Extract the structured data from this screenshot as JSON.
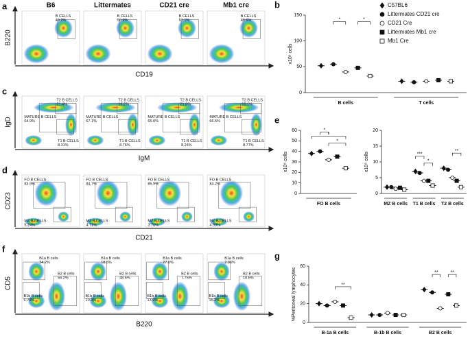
{
  "flow_panels": [
    {
      "label": "a",
      "columns": [
        "B6",
        "Littermates",
        "CD21 cre",
        "Mb1 cre"
      ],
      "y_axis": "B220",
      "x_axis": "CD19",
      "plots": [
        {
          "gates": [
            {
              "name": "B CELLS",
              "value": "49.2%"
            }
          ]
        },
        {
          "gates": [
            {
              "name": "B CELLS",
              "value": "50.9%"
            }
          ]
        },
        {
          "gates": [
            {
              "name": "B CELLS",
              "value": "51.1%"
            }
          ]
        },
        {
          "gates": [
            {
              "name": "B CELLS",
              "value": "43.6%"
            }
          ]
        }
      ]
    },
    {
      "label": "c",
      "y_axis": "IgD",
      "x_axis": "IgM",
      "plots": [
        {
          "gates": [
            {
              "name": "T2 B CELLS",
              "value": "21.4%"
            },
            {
              "name": "MATURE B CELLS",
              "value": "64.9%"
            },
            {
              "name": "T1 B CELLS",
              "value": "8.31%"
            }
          ]
        },
        {
          "gates": [
            {
              "name": "T2 B CELLS",
              "value": "16.2%"
            },
            {
              "name": "MATURE B CELLS",
              "value": "67.1%"
            },
            {
              "name": "T1 B CELLS",
              "value": "8.76%"
            }
          ]
        },
        {
          "gates": [
            {
              "name": "T2 B CELLS",
              "value": "21.8%"
            },
            {
              "name": "MATURE B CELLS",
              "value": "65.0%"
            },
            {
              "name": "T1 B CELLS",
              "value": "8.24%"
            }
          ]
        },
        {
          "gates": [
            {
              "name": "T2 B CELLS",
              "value": "15.1%"
            },
            {
              "name": "MATURE B CELLS",
              "value": "66.5%"
            },
            {
              "name": "T1 B CELLS",
              "value": "8.77%"
            }
          ]
        }
      ]
    },
    {
      "label": "d",
      "y_axis": "CD23",
      "x_axis": "CD21",
      "plots": [
        {
          "gates": [
            {
              "name": "FO B CELLS",
              "value": "83.9%"
            },
            {
              "name": "MZ B CELLS",
              "value": "5.24%"
            }
          ]
        },
        {
          "gates": [
            {
              "name": "FO B CELLS",
              "value": "84.7%"
            },
            {
              "name": "MZ B CELLS",
              "value": "4.71%"
            }
          ]
        },
        {
          "gates": [
            {
              "name": "FO B CELLS",
              "value": "86.9%"
            },
            {
              "name": "MZ B CELLS",
              "value": "3.70%"
            }
          ]
        },
        {
          "gates": [
            {
              "name": "FO B CELLS",
              "value": "84.2%"
            },
            {
              "name": "MZ B CELLS",
              "value": "4.99%"
            }
          ]
        }
      ]
    },
    {
      "label": "f",
      "y_axis": "CD5",
      "x_axis": "B220",
      "plots": [
        {
          "gates": [
            {
              "name": "B1a B cells",
              "value": "24.2%"
            },
            {
              "name": "B2 B cells",
              "value": "56.2%"
            },
            {
              "name": "B1b B cells",
              "value": "6.70%"
            }
          ]
        },
        {
          "gates": [
            {
              "name": "B1a B cells",
              "value": "18.5%"
            },
            {
              "name": "B2 B cells",
              "value": "48.5%"
            },
            {
              "name": "B1b B cells",
              "value": "10.3%"
            }
          ]
        },
        {
          "gates": [
            {
              "name": "B1a B cells",
              "value": "27.0%"
            },
            {
              "name": "B2 B cells",
              "value": "7.75%"
            },
            {
              "name": "B1b B cells",
              "value": "13.9%"
            }
          ]
        },
        {
          "gates": [
            {
              "name": "B1a B cells",
              "value": "2.06%"
            },
            {
              "name": "B2 B cells",
              "value": "10.6%"
            },
            {
              "name": "B1b B cells",
              "value": "15.2%"
            }
          ]
        }
      ]
    }
  ],
  "legend": [
    {
      "name": "C57BL6",
      "marker": "diamond",
      "filled": true
    },
    {
      "name": "Littermates CD21 cre",
      "marker": "circle",
      "filled": true
    },
    {
      "name": "CD21 Cre",
      "marker": "circle",
      "filled": false
    },
    {
      "name": "Littermates Mb1 cre",
      "marker": "square",
      "filled": true
    },
    {
      "name": "Mb1 Cre",
      "marker": "square",
      "filled": false
    }
  ],
  "chart_data": [
    {
      "type": "dot",
      "label": "b",
      "ylabel": "x10⁶ cells",
      "ylim": [
        0,
        150
      ],
      "yticks": [
        0,
        50,
        100,
        150
      ],
      "categories": [
        "B cells",
        "T cells"
      ],
      "series": [
        {
          "values": [
            52,
            22
          ]
        },
        {
          "values": [
            55,
            20
          ]
        },
        {
          "values": [
            40,
            22
          ]
        },
        {
          "values": [
            48,
            24
          ]
        },
        {
          "values": [
            32,
            22
          ]
        }
      ],
      "annotations": [
        "*",
        "*"
      ]
    },
    {
      "type": "dot",
      "label": "e",
      "ylabel": "x10⁶ cells",
      "ylim": [
        0,
        60
      ],
      "yticks": [
        0,
        10,
        20,
        30,
        40,
        50,
        60
      ],
      "categories": [
        "FO B cells"
      ],
      "series": [
        {
          "values": [
            38
          ]
        },
        {
          "values": [
            40
          ]
        },
        {
          "values": [
            32
          ]
        },
        {
          "values": [
            35
          ]
        },
        {
          "values": [
            24
          ]
        }
      ],
      "annotations": [
        "*",
        "*",
        "*"
      ]
    },
    {
      "type": "dot",
      "ylabel": "x10⁶ cells",
      "ylim": [
        0,
        20
      ],
      "yticks": [
        0,
        5,
        10,
        15,
        20
      ],
      "categories": [
        "MZ B cells",
        "T1 B cells",
        "T2 B cells"
      ],
      "series": [
        {
          "values": [
            2,
            7,
            8
          ]
        },
        {
          "values": [
            2,
            6.5,
            7.5
          ]
        },
        {
          "values": [
            1.5,
            4,
            5
          ]
        },
        {
          "values": [
            1.8,
            4,
            4
          ]
        },
        {
          "values": [
            1.2,
            2.5,
            2
          ]
        }
      ],
      "annotations": [
        "***",
        "*",
        "**"
      ]
    },
    {
      "type": "dot",
      "label": "g",
      "ylabel": "%Peritoneal lymphocytes",
      "ylim": [
        0,
        60
      ],
      "yticks": [
        0,
        20,
        40,
        60
      ],
      "categories": [
        "B-1a B cells",
        "B-1b B cells",
        "B2 B cells"
      ],
      "series": [
        {
          "values": [
            20,
            8,
            35
          ]
        },
        {
          "values": [
            18,
            8,
            32
          ]
        },
        {
          "values": [
            22,
            10,
            15
          ]
        },
        {
          "values": [
            18,
            8,
            30
          ]
        },
        {
          "values": [
            5,
            8,
            18
          ]
        }
      ],
      "annotations": [
        "**",
        "**",
        "**"
      ]
    }
  ]
}
